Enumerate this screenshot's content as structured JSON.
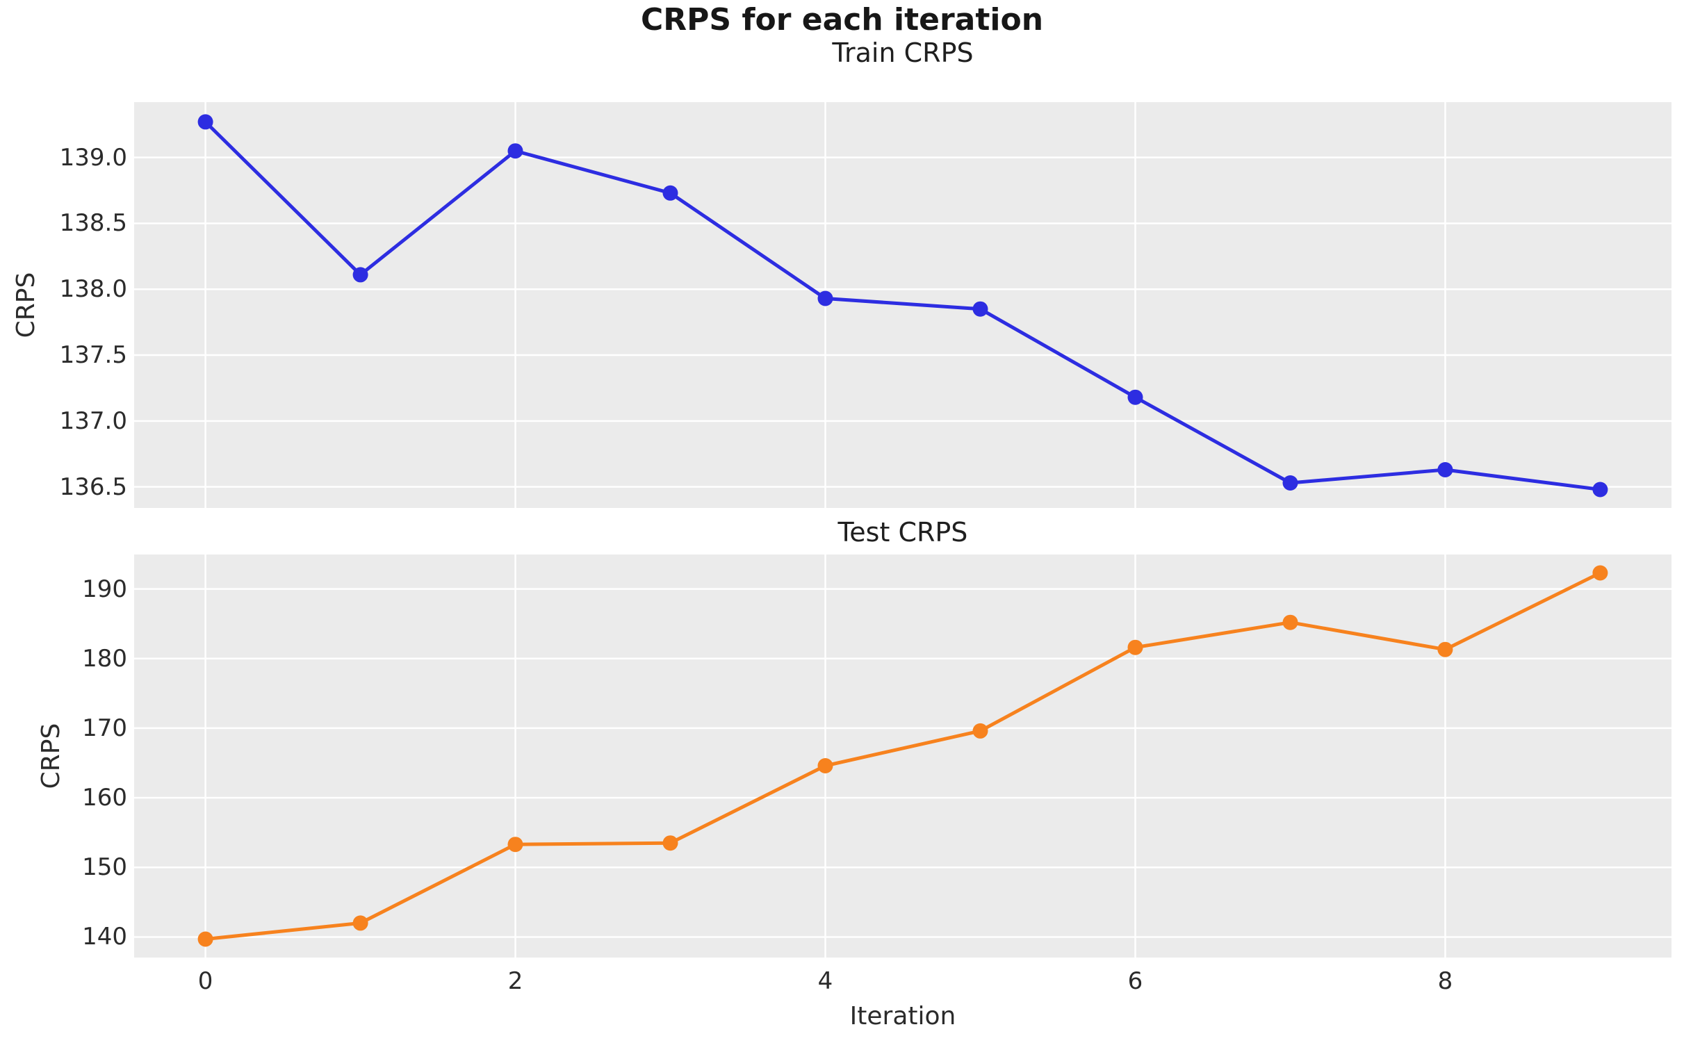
{
  "suptitle": "CRPS for each iteration",
  "chart_data": [
    {
      "type": "line",
      "title": "Train CRPS",
      "ylabel": "CRPS",
      "xlabel": "",
      "series": [
        {
          "name": "Train CRPS",
          "color": "#2d2de1",
          "x": [
            0,
            1,
            2,
            3,
            4,
            5,
            6,
            7,
            8,
            9
          ],
          "y": [
            139.27,
            138.11,
            139.05,
            138.73,
            137.93,
            137.85,
            137.18,
            136.53,
            136.63,
            136.48
          ]
        }
      ],
      "xlim": [
        -0.46,
        9.46
      ],
      "ylim": [
        136.34,
        139.42
      ],
      "yticks": {
        "values": [
          139.0,
          138.5,
          138.0,
          137.5,
          137.0,
          136.5
        ],
        "labels": [
          "139.0",
          "138.5",
          "138.0",
          "137.5",
          "137.0",
          "136.5"
        ]
      },
      "xticks": {
        "values": [
          0,
          2,
          4,
          6,
          8
        ],
        "labels": [
          "0",
          "2",
          "4",
          "6",
          "8"
        ],
        "show_labels": false
      },
      "grid": true,
      "legend": "none",
      "plot_bg": "#ebebeb",
      "grid_color": "#ffffff"
    },
    {
      "type": "line",
      "title": "Test CRPS",
      "ylabel": "CRPS",
      "xlabel": "Iteration",
      "series": [
        {
          "name": "Test CRPS",
          "color": "#f7821e",
          "x": [
            0,
            1,
            2,
            3,
            4,
            5,
            6,
            7,
            8,
            9
          ],
          "y": [
            139.7,
            142.0,
            153.3,
            153.5,
            164.6,
            169.6,
            181.6,
            185.2,
            181.3,
            192.3
          ]
        }
      ],
      "xlim": [
        -0.46,
        9.46
      ],
      "ylim": [
        137.05,
        194.95
      ],
      "yticks": {
        "values": [
          190,
          180,
          170,
          160,
          150,
          140
        ],
        "labels": [
          "190",
          "180",
          "170",
          "160",
          "150",
          "140"
        ]
      },
      "xticks": {
        "values": [
          0,
          2,
          4,
          6,
          8
        ],
        "labels": [
          "0",
          "2",
          "4",
          "6",
          "8"
        ],
        "show_labels": true
      },
      "grid": true,
      "legend": "none",
      "plot_bg": "#ebebeb",
      "grid_color": "#ffffff"
    }
  ]
}
